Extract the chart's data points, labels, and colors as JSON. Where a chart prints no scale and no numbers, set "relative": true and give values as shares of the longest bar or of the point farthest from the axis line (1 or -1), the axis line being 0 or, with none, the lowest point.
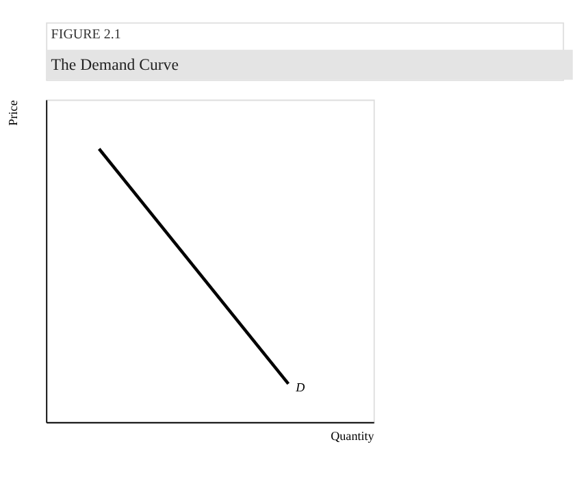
{
  "chart_data": {
    "type": "line",
    "title": "The Demand Curve",
    "subtitle": "FIGURE 2.1",
    "relative": true,
    "xlabel": "Quantity",
    "ylabel": "Price",
    "categories": [
      null,
      null
    ],
    "series": [
      {
        "color": "#000000",
        "values": [
          1,
          0.14
        ]
      }
    ],
    "annotations": [
      "D"
    ],
    "grid": false,
    "marker": "none",
    "line_style": "solid"
  }
}
